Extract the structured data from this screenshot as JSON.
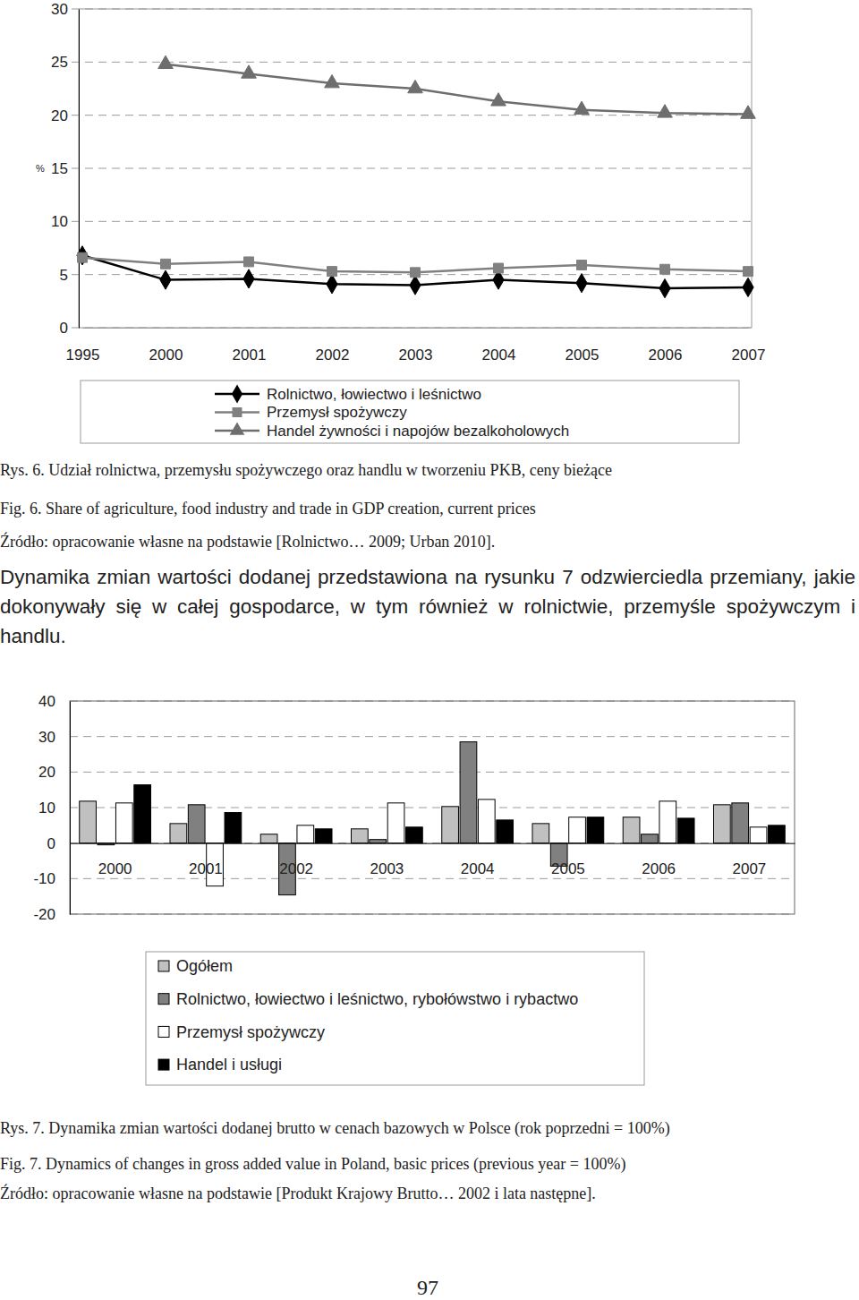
{
  "chart_data": [
    {
      "type": "line",
      "y_label": "%",
      "categories": [
        "1995",
        "2000",
        "2001",
        "2002",
        "2003",
        "2004",
        "2005",
        "2006",
        "2007"
      ],
      "ylim": [
        0,
        30
      ],
      "yticks": [
        0,
        5,
        10,
        15,
        20,
        25,
        30
      ],
      "grid": true,
      "legend": "bottom",
      "series": [
        {
          "name": "Rolnictwo, łowiectwo i leśnictwo",
          "color": "#000000",
          "marker": "diamond",
          "values": [
            6.8,
            4.5,
            4.6,
            4.1,
            4.0,
            4.5,
            4.2,
            3.7,
            3.8
          ]
        },
        {
          "name": "Przemysł spożywczy",
          "color": "#808080",
          "marker": "square",
          "values": [
            6.6,
            6.0,
            6.2,
            5.3,
            5.2,
            5.6,
            5.9,
            5.5,
            5.3
          ]
        },
        {
          "name": "Handel żywności i napojów bezalkoholowych",
          "color": "#6e6e6e",
          "marker": "triangle",
          "values": [
            null,
            24.8,
            23.9,
            23.0,
            22.5,
            21.3,
            20.5,
            20.2,
            20.1
          ]
        }
      ]
    },
    {
      "type": "bar",
      "categories": [
        "2000",
        "2001",
        "2002",
        "2003",
        "2004",
        "2005",
        "2006",
        "2007"
      ],
      "ylim": [
        -20,
        40
      ],
      "yticks": [
        -20,
        -10,
        0,
        10,
        20,
        30,
        40
      ],
      "grid": true,
      "legend": "bottom",
      "series": [
        {
          "name": "Ogółem",
          "color": "#c0c0c0",
          "values": [
            11.8,
            5.5,
            2.5,
            4.0,
            10.3,
            5.5,
            7.3,
            10.8
          ]
        },
        {
          "name": "Rolnictwo, łowiectwo i leśnictwo, rybołówstwo i rybactwo",
          "color": "#808080",
          "values": [
            -0.5,
            10.8,
            -14.6,
            1.0,
            28.5,
            -6.5,
            2.5,
            11.3
          ]
        },
        {
          "name": "Przemysł spożywczy",
          "color": "#ffffff",
          "values": [
            11.3,
            -12.1,
            5.0,
            11.3,
            12.3,
            7.3,
            11.8,
            4.5
          ]
        },
        {
          "name": "Handel i usługi",
          "color": "#000000",
          "values": [
            16.4,
            8.6,
            4.0,
            4.5,
            6.5,
            7.3,
            7.0,
            5.0
          ]
        }
      ]
    }
  ],
  "figures": [
    {
      "caption_pl": "Rys. 6. Udział rolnictwa, przemysłu spożywczego oraz handlu w tworzeniu PKB, ceny bieżące",
      "caption_en": "Fig. 6. Share of agriculture, food industry and trade in GDP creation, current prices",
      "source": "Źródło: opracowanie własne na podstawie [Rolnictwo… 2009; Urban 2010]."
    },
    {
      "caption_pl": "Rys. 7. Dynamika zmian wartości dodanej brutto w cenach bazowych w Polsce (rok poprzedni = 100%)",
      "caption_en": "Fig. 7. Dynamics of changes in gross added value in Poland, basic prices (previous year = 100%)",
      "source": "Źródło: opracowanie własne na podstawie [Produkt Krajowy Brutto… 2002 i lata następne]."
    }
  ],
  "paragraph": "Dynamika zmian wartości dodanej przedstawiona na rysunku 7 odzwierciedla przemiany, jakie dokonywały się w całej gospodarce, w tym również w rolnictwie, przemyśle spożywczym i handlu.",
  "page_number": "97"
}
